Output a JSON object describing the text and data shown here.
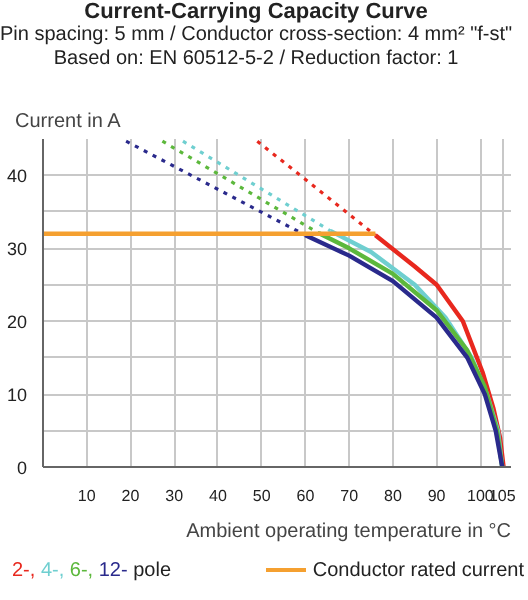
{
  "chart_data": {
    "type": "line",
    "title": "Current-Carrying Capacity Curve",
    "subtitle": "Pin spacing: 5 mm / Conductor cross-section: 4 mm² \"f-st\"\nBased on: EN 60512-5-2 / Reduction factor: 1",
    "xlabel": "Ambient operating temperature in °C",
    "ylabel": "Current in A",
    "annotations": [
      "pole"
    ],
    "xlim": [
      0,
      107
    ],
    "ylim": [
      0,
      45
    ],
    "xticks": [
      10,
      20,
      30,
      40,
      50,
      60,
      70,
      80,
      90,
      100,
      105
    ],
    "yticks": [
      0,
      {
        "value": 5,
        "label": null
      },
      10,
      {
        "value": 15,
        "label": null
      },
      20,
      {
        "value": 25,
        "label": null
      },
      30,
      {
        "value": 35,
        "label": null
      },
      40
    ],
    "grid": true,
    "legend": "bottom",
    "series": [
      {
        "name": "2-,",
        "color": "#e8281e",
        "line_style": "solid",
        "x": [
          76,
          85,
          90,
          96,
          100.5,
          103,
          104.5,
          105.3
        ],
        "values": [
          31.8,
          27.5,
          25,
          20,
          13,
          8,
          4,
          0
        ]
      },
      {
        "name": "4-,",
        "color": "#6fcfd0",
        "line_style": "solid",
        "x": [
          65.7,
          75,
          85,
          92,
          98,
          101.5,
          104,
          105
        ],
        "values": [
          32.4,
          29.5,
          25,
          20.5,
          15,
          10,
          5,
          0
        ]
      },
      {
        "name": "6-,",
        "color": "#5cb83c",
        "line_style": "solid",
        "x": [
          63,
          70,
          80,
          90,
          97,
          101,
          103.8,
          105
        ],
        "values": [
          32.1,
          30,
          26.5,
          21.5,
          16,
          11,
          5,
          0
        ]
      },
      {
        "name": "12-",
        "color": "#2a2a8c",
        "line_style": "solid",
        "x": [
          60,
          70,
          80,
          90,
          97,
          101,
          103.5,
          105
        ],
        "values": [
          31.8,
          29,
          25.5,
          20.5,
          15,
          10,
          5,
          0
        ]
      },
      {
        "color": "#e8281e",
        "line_style": "dashed",
        "x": [
          49,
          76
        ],
        "values": [
          44.7,
          31.8
        ]
      },
      {
        "color": "#6fcfd0",
        "line_style": "dashed",
        "x": [
          32,
          65.7
        ],
        "values": [
          44.7,
          32.4
        ]
      },
      {
        "color": "#5cb83c",
        "line_style": "dashed",
        "x": [
          27.3,
          63
        ],
        "values": [
          44.7,
          32.1
        ]
      },
      {
        "color": "#2a2a8c",
        "line_style": "dashed",
        "x": [
          19,
          60
        ],
        "values": [
          44.7,
          31.8
        ]
      },
      {
        "name": "Conductor rated current",
        "color": "#f5a030",
        "line_style": "solid",
        "x": [
          0,
          76
        ],
        "values": [
          32,
          32
        ]
      }
    ]
  }
}
